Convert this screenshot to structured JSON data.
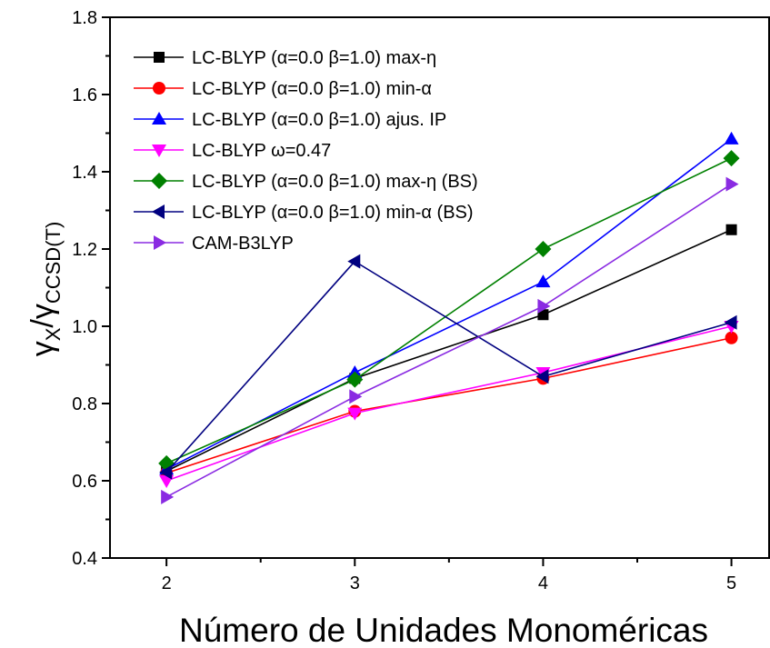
{
  "chart_data": {
    "type": "line",
    "xlabel": "Número de Unidades Monoméricas",
    "ylabel_main": "γ",
    "ylabel_sub1": "X",
    "ylabel_sep": "/γ",
    "ylabel_sub2": "CCSD(T)",
    "x": [
      2,
      3,
      4,
      5
    ],
    "xticks": [
      "2",
      "3",
      "4",
      "5"
    ],
    "xlim": [
      1.7,
      5.2
    ],
    "ylim": [
      0.4,
      1.8
    ],
    "yticks": [
      "0.4",
      "0.6",
      "0.8",
      "1.0",
      "1.2",
      "1.4",
      "1.6",
      "1.8"
    ],
    "legend_position": "top-left",
    "series": [
      {
        "name": "LC-BLYP (α=0.0 β=1.0) max-η",
        "color": "#000000",
        "marker": "square",
        "values": [
          0.625,
          0.865,
          1.03,
          1.25
        ]
      },
      {
        "name": "LC-BLYP (α=0.0 β=1.0) min-α",
        "color": "#ff0000",
        "marker": "circle",
        "values": [
          0.62,
          0.78,
          0.865,
          0.97
        ]
      },
      {
        "name": "LC-BLYP (α=0.0 β=1.0) ajus. IP",
        "color": "#0000ff",
        "marker": "triangle-up",
        "values": [
          0.63,
          0.88,
          1.115,
          1.485
        ]
      },
      {
        "name": "LC-BLYP ω=0.47",
        "color": "#ff00ff",
        "marker": "triangle-down",
        "values": [
          0.6,
          0.775,
          0.88,
          1.0
        ]
      },
      {
        "name": "LC-BLYP (α=0.0 β=1.0) max-η (BS)",
        "color": "#008000",
        "marker": "diamond",
        "values": [
          0.645,
          0.862,
          1.2,
          1.435
        ]
      },
      {
        "name": "LC-BLYP (α=0.0 β=1.0) min-α (BS)",
        "color": "#000080",
        "marker": "triangle-left",
        "values": [
          0.622,
          1.168,
          0.87,
          1.01
        ]
      },
      {
        "name": "CAM-B3LYP",
        "color": "#8a2be2",
        "marker": "triangle-right",
        "values": [
          0.558,
          0.818,
          1.052,
          1.368
        ]
      }
    ]
  }
}
